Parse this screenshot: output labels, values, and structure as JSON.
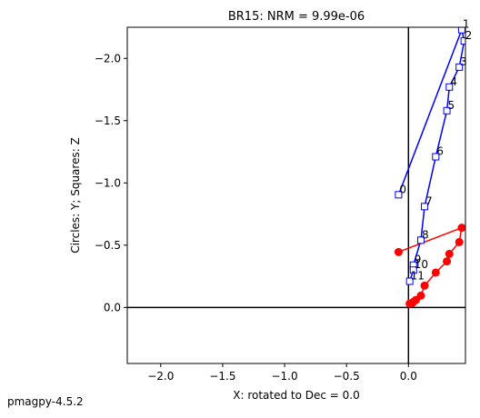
{
  "chart_data": {
    "type": "scatter",
    "title": "BR15: NRM =  9.99e-06",
    "x_label": "X: rotated to Dec =     0.0",
    "y_label": "Circles: Y; Squares: Z",
    "xlim": [
      -2.27,
      0.46
    ],
    "ylim": [
      0.45,
      -2.25
    ],
    "xticks": [
      {
        "value": -2.0,
        "label": "−2.0"
      },
      {
        "value": -1.5,
        "label": "−1.5"
      },
      {
        "value": -1.0,
        "label": "−1.0"
      },
      {
        "value": -0.5,
        "label": "−0.5"
      },
      {
        "value": 0,
        "label": "0.0"
      }
    ],
    "yticks": [
      {
        "value": -2.0,
        "label": "−2.0"
      },
      {
        "value": -1.5,
        "label": "−1.5"
      },
      {
        "value": -1.0,
        "label": "−1.0"
      },
      {
        "value": -0.5,
        "label": "−0.5"
      },
      {
        "value": 0,
        "label": "0.0"
      }
    ],
    "point_labels": [
      "0",
      "1",
      "2",
      "3",
      "4",
      "5",
      "6",
      "7",
      "8",
      "9",
      "10",
      "11"
    ],
    "series": [
      {
        "color": "#ff0000",
        "marker": "circle",
        "x": [
          -0.08,
          0.43,
          0.41,
          0.33,
          0.31,
          0.22,
          0.13,
          0.1,
          0.06,
          0.04,
          0.03,
          0.01
        ],
        "values": [
          -0.445,
          -0.64,
          -0.525,
          -0.43,
          -0.37,
          -0.28,
          -0.175,
          -0.095,
          -0.06,
          -0.045,
          -0.035,
          -0.03
        ]
      },
      {
        "color": "#0000ff",
        "marker": "square",
        "x": [
          -0.08,
          0.43,
          0.45,
          0.41,
          0.33,
          0.31,
          0.22,
          0.13,
          0.1,
          0.04,
          0.04,
          0.01
        ],
        "values": [
          -0.905,
          -2.23,
          -2.14,
          -1.93,
          -1.77,
          -1.58,
          -1.21,
          -0.81,
          -0.54,
          -0.34,
          -0.3,
          -0.21
        ]
      }
    ]
  },
  "footer": "pmagpy-4.5.2"
}
